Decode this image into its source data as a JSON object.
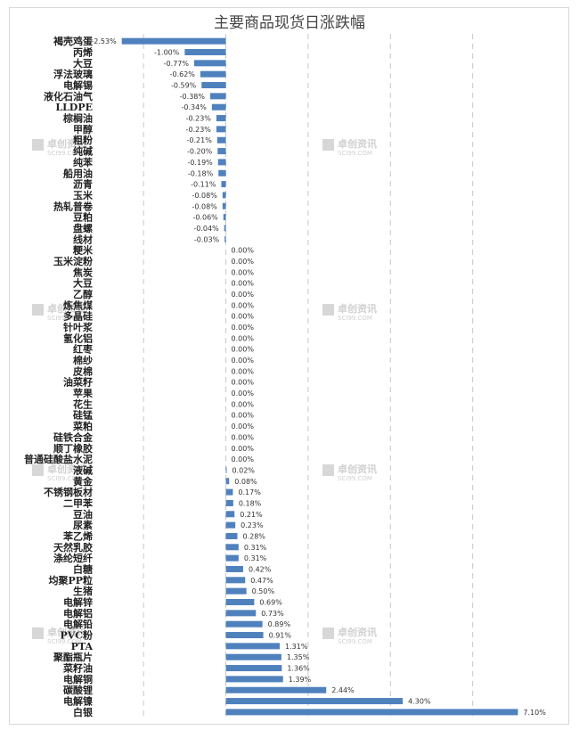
{
  "chart_data": {
    "type": "bar",
    "orientation": "horizontal",
    "title": "主要商品现货日涨跌幅",
    "xlim": [
      -3,
      8
    ],
    "grid": true,
    "bar_color": "#4f81bd",
    "watermark": {
      "name_cn": "卓创资讯",
      "name_en": "SCI99.COM"
    },
    "categories": [
      "褐壳鸡蛋",
      "丙烯",
      "大豆",
      "浮法玻璃",
      "电解锡",
      "液化石油气",
      "LLDPE",
      "棕榈油",
      "甲醇",
      "粗粉",
      "纯碱",
      "纯苯",
      "船用油",
      "沥青",
      "玉米",
      "热轧普卷",
      "豆粕",
      "盘螺",
      "线材",
      "粳米",
      "玉米淀粉",
      "焦炭",
      "大豆",
      "乙醇",
      "炼焦煤",
      "多晶硅",
      "针叶浆",
      "氢化铝",
      "红枣",
      "棉纱",
      "皮棉",
      "油菜籽",
      "苹果",
      "花生",
      "硅锰",
      "菜粕",
      "硅铁合金",
      "顺丁橡胶",
      "普通硅酸盐水泥",
      "液碱",
      "黄金",
      "不锈钢板材",
      "二甲苯",
      "豆油",
      "尿素",
      "苯乙烯",
      "天然乳胶",
      "涤纶短纤",
      "白糖",
      "均聚PP粒",
      "生猪",
      "电解锌",
      "电解铝",
      "电解铅",
      "PVC粉",
      "PTA",
      "聚酯瓶片",
      "菜籽油",
      "电解铜",
      "碳酸锂",
      "电解镍",
      "白银"
    ],
    "values": [
      -2.53,
      -1.0,
      -0.77,
      -0.62,
      -0.59,
      -0.38,
      -0.34,
      -0.23,
      -0.23,
      -0.21,
      -0.2,
      -0.19,
      -0.18,
      -0.11,
      -0.08,
      -0.08,
      -0.06,
      -0.04,
      -0.03,
      0,
      0,
      0,
      0,
      0,
      0,
      0,
      0,
      0,
      0,
      0,
      0,
      0,
      0,
      0,
      0,
      0,
      0,
      0,
      0,
      0.02,
      0.08,
      0.17,
      0.18,
      0.21,
      0.23,
      0.28,
      0.31,
      0.31,
      0.42,
      0.47,
      0.5,
      0.69,
      0.73,
      0.89,
      0.91,
      1.31,
      1.35,
      1.36,
      1.39,
      2.44,
      4.3,
      7.1
    ],
    "data_labels": [
      "-2.53%",
      "-1.00%",
      "-0.77%",
      "-0.62%",
      "-0.59%",
      "-0.38%",
      "-0.34%",
      "-0.23%",
      "-0.23%",
      "-0.21%",
      "-0.20%",
      "-0.19%",
      "-0.18%",
      "-0.11%",
      "-0.08%",
      "-0.08%",
      "-0.06%",
      "-0.04%",
      "-0.03%",
      "0.00%",
      "0.00%",
      "0.00%",
      "0.00%",
      "0.00%",
      "0.00%",
      "0.00%",
      "0.00%",
      "0.00%",
      "0.00%",
      "0.00%",
      "0.00%",
      "0.00%",
      "0.00%",
      "0.00%",
      "0.00%",
      "0.00%",
      "0.00%",
      "0.00%",
      "0.00%",
      "0.02%",
      "0.08%",
      "0.17%",
      "0.18%",
      "0.21%",
      "0.23%",
      "0.28%",
      "0.31%",
      "0.31%",
      "0.42%",
      "0.47%",
      "0.50%",
      "0.69%",
      "0.73%",
      "0.89%",
      "0.91%",
      "1.31%",
      "1.35%",
      "1.36%",
      "1.39%",
      "2.44%",
      "4.30%",
      "7.10%"
    ]
  }
}
